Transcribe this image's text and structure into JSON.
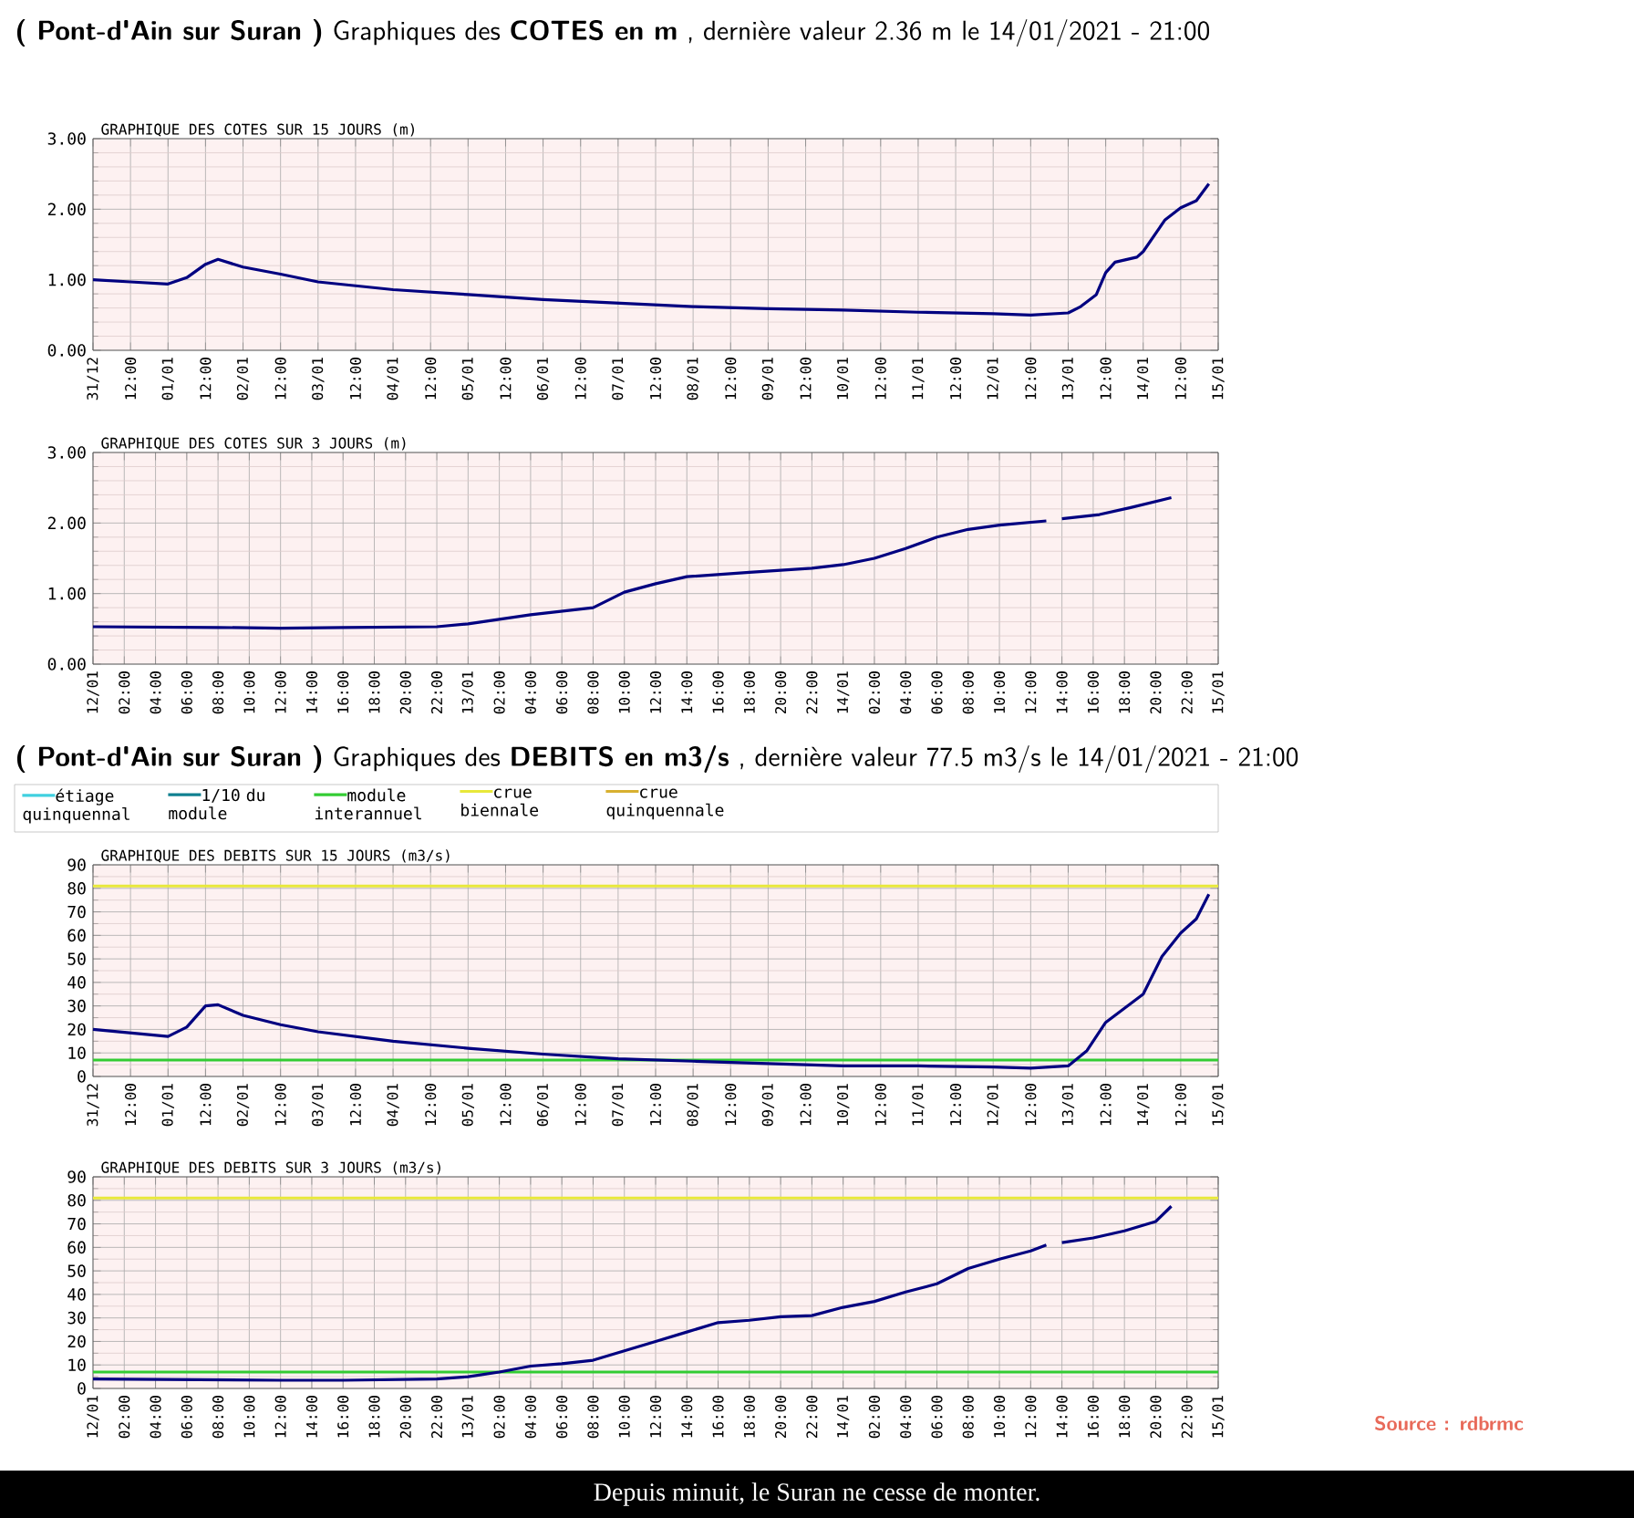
{
  "chart_data": [
    {
      "type": "line",
      "title": "**( Pont-d'Ain sur Suran )** Graphiques des **COTES en m** , dernière valeur 2.36 m le 14/01/2021 - 21:00",
      "subtitle": "GRAPHIQUE DES COTES SUR 15 JOURS (m)",
      "color": "#000080",
      "grid": true,
      "x": [
        "2020-12-31T00:00",
        "2020-12-31T12:00",
        "2021-01-01T00:00",
        "2021-01-01T06:00",
        "2021-01-01T12:00",
        "2021-01-01T16:00",
        "2021-01-02T00:00",
        "2021-01-02T12:00",
        "2021-01-03T00:00",
        "2021-01-04T00:00",
        "2021-01-05T00:00",
        "2021-01-06T00:00",
        "2021-01-07T00:00",
        "2021-01-08T00:00",
        "2021-01-09T00:00",
        "2021-01-10T00:00",
        "2021-01-11T00:00",
        "2021-01-12T00:00",
        "2021-01-12T12:00",
        "2021-01-13T00:00",
        "2021-01-13T04:00",
        "2021-01-13T09:00",
        "2021-01-13T12:00",
        "2021-01-13T15:00",
        "2021-01-13T22:00",
        "2021-01-14T00:00",
        "2021-01-14T07:00",
        "2021-01-14T12:00",
        "2021-01-14T17:00",
        "2021-01-14T21:00"
      ],
      "values": [
        1.0,
        0.97,
        0.94,
        1.03,
        1.22,
        1.29,
        1.18,
        1.08,
        0.97,
        0.86,
        0.79,
        0.72,
        0.67,
        0.62,
        0.59,
        0.57,
        0.54,
        0.52,
        0.5,
        0.53,
        0.62,
        0.79,
        1.1,
        1.25,
        1.32,
        1.4,
        1.85,
        2.02,
        2.12,
        2.36
      ],
      "xlim": [
        "2020-12-31T00:00",
        "2021-01-15T00:00"
      ],
      "ylim": [
        0,
        3
      ],
      "yticks": [
        {
          "value": 0,
          "label": "0.00"
        },
        {
          "value": 1,
          "label": "1.00"
        },
        {
          "value": 2,
          "label": "2.00"
        },
        {
          "value": 3,
          "label": "3.00"
        }
      ],
      "xticks": [
        {
          "value": "2020-12-31T00:00",
          "label": "31/12"
        },
        {
          "value": "2020-12-31T12:00",
          "label": "12:00"
        },
        {
          "value": "2021-01-01T00:00",
          "label": "01/01"
        },
        {
          "value": "2021-01-01T12:00",
          "label": "12:00"
        },
        {
          "value": "2021-01-02T00:00",
          "label": "02/01"
        },
        {
          "value": "2021-01-02T12:00",
          "label": "12:00"
        },
        {
          "value": "2021-01-03T00:00",
          "label": "03/01"
        },
        {
          "value": "2021-01-03T12:00",
          "label": "12:00"
        },
        {
          "value": "2021-01-04T00:00",
          "label": "04/01"
        },
        {
          "value": "2021-01-04T12:00",
          "label": "12:00"
        },
        {
          "value": "2021-01-05T00:00",
          "label": "05/01"
        },
        {
          "value": "2021-01-05T12:00",
          "label": "12:00"
        },
        {
          "value": "2021-01-06T00:00",
          "label": "06/01"
        },
        {
          "value": "2021-01-06T12:00",
          "label": "12:00"
        },
        {
          "value": "2021-01-07T00:00",
          "label": "07/01"
        },
        {
          "value": "2021-01-07T12:00",
          "label": "12:00"
        },
        {
          "value": "2021-01-08T00:00",
          "label": "08/01"
        },
        {
          "value": "2021-01-08T12:00",
          "label": "12:00"
        },
        {
          "value": "2021-01-09T00:00",
          "label": "09/01"
        },
        {
          "value": "2021-01-09T12:00",
          "label": "12:00"
        },
        {
          "value": "2021-01-10T00:00",
          "label": "10/01"
        },
        {
          "value": "2021-01-10T12:00",
          "label": "12:00"
        },
        {
          "value": "2021-01-11T00:00",
          "label": "11/01"
        },
        {
          "value": "2021-01-11T12:00",
          "label": "12:00"
        },
        {
          "value": "2021-01-12T00:00",
          "label": "12/01"
        },
        {
          "value": "2021-01-12T12:00",
          "label": "12:00"
        },
        {
          "value": "2021-01-13T00:00",
          "label": "13/01"
        },
        {
          "value": "2021-01-13T12:00",
          "label": "12:00"
        },
        {
          "value": "2021-01-14T00:00",
          "label": "14/01"
        },
        {
          "value": "2021-01-14T12:00",
          "label": "12:00"
        },
        {
          "value": "2021-01-15T00:00",
          "label": "15/01"
        }
      ]
    },
    {
      "type": "line",
      "title": "GRAPHIQUE DES COTES SUR 3 JOURS (m)",
      "color": "#000080",
      "grid": true,
      "x": [
        "2021-01-12T00:00",
        "2021-01-12T08:00",
        "2021-01-12T12:00",
        "2021-01-12T16:00",
        "2021-01-12T22:00",
        "2021-01-13T00:00",
        "2021-01-13T04:00",
        "2021-01-13T08:00",
        "2021-01-13T10:00",
        "2021-01-13T12:00",
        "2021-01-13T14:00",
        "2021-01-13T18:00",
        "2021-01-13T22:00",
        "2021-01-14T00:00",
        "2021-01-14T02:00",
        "2021-01-14T04:00",
        "2021-01-14T06:00",
        "2021-01-14T08:00",
        "2021-01-14T10:00",
        "2021-01-14T13:00",
        "2021-01-14T13:30",
        "2021-01-14T14:00",
        "2021-01-14T16:24",
        "2021-01-14T18:24",
        "2021-01-14T21:00"
      ],
      "values": [
        0.53,
        0.52,
        0.51,
        0.52,
        0.53,
        0.57,
        0.7,
        0.8,
        1.02,
        1.14,
        1.24,
        1.3,
        1.36,
        1.41,
        1.5,
        1.64,
        1.8,
        1.91,
        1.97,
        2.03,
        null,
        2.06,
        2.12,
        2.22,
        2.36
      ],
      "xlim": [
        "2021-01-12T00:00",
        "2021-01-15T00:00"
      ],
      "ylim": [
        0,
        3
      ],
      "yticks": [
        {
          "value": 0,
          "label": "0.00"
        },
        {
          "value": 1,
          "label": "1.00"
        },
        {
          "value": 2,
          "label": "2.00"
        },
        {
          "value": 3,
          "label": "3.00"
        }
      ],
      "xticks": [
        {
          "value": "2021-01-12T00:00",
          "label": "12/01"
        },
        {
          "value": "2021-01-12T02:00",
          "label": "02:00"
        },
        {
          "value": "2021-01-12T04:00",
          "label": "04:00"
        },
        {
          "value": "2021-01-12T06:00",
          "label": "06:00"
        },
        {
          "value": "2021-01-12T08:00",
          "label": "08:00"
        },
        {
          "value": "2021-01-12T10:00",
          "label": "10:00"
        },
        {
          "value": "2021-01-12T12:00",
          "label": "12:00"
        },
        {
          "value": "2021-01-12T14:00",
          "label": "14:00"
        },
        {
          "value": "2021-01-12T16:00",
          "label": "16:00"
        },
        {
          "value": "2021-01-12T18:00",
          "label": "18:00"
        },
        {
          "value": "2021-01-12T20:00",
          "label": "20:00"
        },
        {
          "value": "2021-01-12T22:00",
          "label": "22:00"
        },
        {
          "value": "2021-01-13T00:00",
          "label": "13/01"
        },
        {
          "value": "2021-01-13T02:00",
          "label": "02:00"
        },
        {
          "value": "2021-01-13T04:00",
          "label": "04:00"
        },
        {
          "value": "2021-01-13T06:00",
          "label": "06:00"
        },
        {
          "value": "2021-01-13T08:00",
          "label": "08:00"
        },
        {
          "value": "2021-01-13T10:00",
          "label": "10:00"
        },
        {
          "value": "2021-01-13T12:00",
          "label": "12:00"
        },
        {
          "value": "2021-01-13T14:00",
          "label": "14:00"
        },
        {
          "value": "2021-01-13T16:00",
          "label": "16:00"
        },
        {
          "value": "2021-01-13T18:00",
          "label": "18:00"
        },
        {
          "value": "2021-01-13T20:00",
          "label": "20:00"
        },
        {
          "value": "2021-01-13T22:00",
          "label": "22:00"
        },
        {
          "value": "2021-01-14T00:00",
          "label": "14/01"
        },
        {
          "value": "2021-01-14T02:00",
          "label": "02:00"
        },
        {
          "value": "2021-01-14T04:00",
          "label": "04:00"
        },
        {
          "value": "2021-01-14T06:00",
          "label": "06:00"
        },
        {
          "value": "2021-01-14T08:00",
          "label": "08:00"
        },
        {
          "value": "2021-01-14T10:00",
          "label": "10:00"
        },
        {
          "value": "2021-01-14T12:00",
          "label": "12:00"
        },
        {
          "value": "2021-01-14T14:00",
          "label": "14:00"
        },
        {
          "value": "2021-01-14T16:00",
          "label": "16:00"
        },
        {
          "value": "2021-01-14T18:00",
          "label": "18:00"
        },
        {
          "value": "2021-01-14T20:00",
          "label": "20:00"
        },
        {
          "value": "2021-01-14T22:00",
          "label": "22:00"
        },
        {
          "value": "2021-01-15T00:00",
          "label": "15/01"
        }
      ]
    },
    {
      "type": "other",
      "title": "**( Pont-d'Ain sur Suran )** Graphiques des **DEBITS en m3/s** , dernière valeur 77.5 m3/s le 14/01/2021 - 21:00",
      "categories": [
        "étiage quinquennal",
        "1/10 du module",
        "module interannuel",
        "crue biennale",
        "crue quinquennale"
      ],
      "colors": [
        "#40d0e0",
        "#108090",
        "#33cc33",
        "#e8e83a",
        "#d8b030"
      ]
    },
    {
      "type": "line",
      "title": "GRAPHIQUE DES DEBITS SUR 15 JOURS (m3/s)",
      "color": "#000080",
      "grid": true,
      "x": [
        "2020-12-31T00:00",
        "2021-01-01T00:00",
        "2021-01-01T06:00",
        "2021-01-01T12:00",
        "2021-01-01T16:00",
        "2021-01-02T00:00",
        "2021-01-02T12:00",
        "2021-01-03T00:00",
        "2021-01-04T00:00",
        "2021-01-05T00:00",
        "2021-01-06T00:00",
        "2021-01-07T00:00",
        "2021-01-08T00:00",
        "2021-01-09T00:00",
        "2021-01-10T00:00",
        "2021-01-11T00:00",
        "2021-01-12T00:00",
        "2021-01-12T12:00",
        "2021-01-13T00:00",
        "2021-01-13T06:00",
        "2021-01-13T12:00",
        "2021-01-13T18:00",
        "2021-01-14T00:00",
        "2021-01-14T06:00",
        "2021-01-14T12:00",
        "2021-01-14T17:00",
        "2021-01-14T21:00"
      ],
      "values": [
        20,
        17,
        21,
        30,
        30.5,
        26,
        22,
        19,
        15,
        12,
        9.5,
        7.5,
        6.5,
        5.5,
        4.5,
        4.5,
        4,
        3.5,
        4.5,
        11,
        23,
        29,
        35,
        51,
        61,
        67,
        77.5
      ],
      "xlim": [
        "2020-12-31T00:00",
        "2021-01-15T00:00"
      ],
      "ylim": [
        0,
        90
      ],
      "yticks": [
        0,
        10,
        20,
        30,
        40,
        50,
        60,
        70,
        80,
        90
      ],
      "ref_lines": [
        {
          "axis": "y",
          "value": 81,
          "color": "#e8e83a"
        },
        {
          "axis": "y",
          "value": 7,
          "color": "#33cc33"
        }
      ],
      "xticks": [
        {
          "value": "2020-12-31T00:00",
          "label": "31/12"
        },
        {
          "value": "2020-12-31T12:00",
          "label": "12:00"
        },
        {
          "value": "2021-01-01T00:00",
          "label": "01/01"
        },
        {
          "value": "2021-01-01T12:00",
          "label": "12:00"
        },
        {
          "value": "2021-01-02T00:00",
          "label": "02/01"
        },
        {
          "value": "2021-01-02T12:00",
          "label": "12:00"
        },
        {
          "value": "2021-01-03T00:00",
          "label": "03/01"
        },
        {
          "value": "2021-01-03T12:00",
          "label": "12:00"
        },
        {
          "value": "2021-01-04T00:00",
          "label": "04/01"
        },
        {
          "value": "2021-01-04T12:00",
          "label": "12:00"
        },
        {
          "value": "2021-01-05T00:00",
          "label": "05/01"
        },
        {
          "value": "2021-01-05T12:00",
          "label": "12:00"
        },
        {
          "value": "2021-01-06T00:00",
          "label": "06/01"
        },
        {
          "value": "2021-01-06T12:00",
          "label": "12:00"
        },
        {
          "value": "2021-01-07T00:00",
          "label": "07/01"
        },
        {
          "value": "2021-01-07T12:00",
          "label": "12:00"
        },
        {
          "value": "2021-01-08T00:00",
          "label": "08/01"
        },
        {
          "value": "2021-01-08T12:00",
          "label": "12:00"
        },
        {
          "value": "2021-01-09T00:00",
          "label": "09/01"
        },
        {
          "value": "2021-01-09T12:00",
          "label": "12:00"
        },
        {
          "value": "2021-01-10T00:00",
          "label": "10/01"
        },
        {
          "value": "2021-01-10T12:00",
          "label": "12:00"
        },
        {
          "value": "2021-01-11T00:00",
          "label": "11/01"
        },
        {
          "value": "2021-01-11T12:00",
          "label": "12:00"
        },
        {
          "value": "2021-01-12T00:00",
          "label": "12/01"
        },
        {
          "value": "2021-01-12T12:00",
          "label": "12:00"
        },
        {
          "value": "2021-01-13T00:00",
          "label": "13/01"
        },
        {
          "value": "2021-01-13T12:00",
          "label": "12:00"
        },
        {
          "value": "2021-01-14T00:00",
          "label": "14/01"
        },
        {
          "value": "2021-01-14T12:00",
          "label": "12:00"
        },
        {
          "value": "2021-01-15T00:00",
          "label": "15/01"
        }
      ]
    },
    {
      "type": "line",
      "title": "GRAPHIQUE DES DEBITS SUR 3 JOURS (m3/s)",
      "color": "#000080",
      "grid": true,
      "x": [
        "2021-01-12T00:00",
        "2021-01-12T12:00",
        "2021-01-12T16:00",
        "2021-01-12T22:00",
        "2021-01-13T00:00",
        "2021-01-13T02:00",
        "2021-01-13T04:00",
        "2021-01-13T06:00",
        "2021-01-13T08:00",
        "2021-01-13T10:00",
        "2021-01-13T12:00",
        "2021-01-13T14:00",
        "2021-01-13T16:00",
        "2021-01-13T18:00",
        "2021-01-13T20:00",
        "2021-01-13T22:00",
        "2021-01-14T00:00",
        "2021-01-14T02:00",
        "2021-01-14T04:00",
        "2021-01-14T06:00",
        "2021-01-14T08:00",
        "2021-01-14T10:00",
        "2021-01-14T12:00",
        "2021-01-14T13:00",
        "2021-01-14T13:30",
        "2021-01-14T14:00",
        "2021-01-14T16:00",
        "2021-01-14T18:00",
        "2021-01-14T20:00",
        "2021-01-14T21:00"
      ],
      "values": [
        4,
        3.5,
        3.5,
        4,
        5,
        7,
        9.5,
        10.5,
        12,
        16,
        20,
        24,
        28,
        29,
        30.5,
        31,
        34.5,
        37,
        41,
        44.5,
        51,
        55,
        58.5,
        61,
        null,
        62,
        64,
        67,
        71,
        77.5
      ],
      "xlim": [
        "2021-01-12T00:00",
        "2021-01-15T00:00"
      ],
      "ylim": [
        0,
        90
      ],
      "yticks": [
        0,
        10,
        20,
        30,
        40,
        50,
        60,
        70,
        80,
        90
      ],
      "ref_lines": [
        {
          "axis": "y",
          "value": 81,
          "color": "#e8e83a"
        },
        {
          "axis": "y",
          "value": 7,
          "color": "#33cc33"
        }
      ],
      "annotations": [
        "Source : rdbrmc",
        "Depuis minuit, le Suran ne cesse de monter."
      ],
      "xticks": [
        {
          "value": "2021-01-12T00:00",
          "label": "12/01"
        },
        {
          "value": "2021-01-12T02:00",
          "label": "02:00"
        },
        {
          "value": "2021-01-12T04:00",
          "label": "04:00"
        },
        {
          "value": "2021-01-12T06:00",
          "label": "06:00"
        },
        {
          "value": "2021-01-12T08:00",
          "label": "08:00"
        },
        {
          "value": "2021-01-12T10:00",
          "label": "10:00"
        },
        {
          "value": "2021-01-12T12:00",
          "label": "12:00"
        },
        {
          "value": "2021-01-12T14:00",
          "label": "14:00"
        },
        {
          "value": "2021-01-12T16:00",
          "label": "16:00"
        },
        {
          "value": "2021-01-12T18:00",
          "label": "18:00"
        },
        {
          "value": "2021-01-12T20:00",
          "label": "20:00"
        },
        {
          "value": "2021-01-12T22:00",
          "label": "22:00"
        },
        {
          "value": "2021-01-13T00:00",
          "label": "13/01"
        },
        {
          "value": "2021-01-13T02:00",
          "label": "02:00"
        },
        {
          "value": "2021-01-13T04:00",
          "label": "04:00"
        },
        {
          "value": "2021-01-13T06:00",
          "label": "06:00"
        },
        {
          "value": "2021-01-13T08:00",
          "label": "08:00"
        },
        {
          "value": "2021-01-13T10:00",
          "label": "10:00"
        },
        {
          "value": "2021-01-13T12:00",
          "label": "12:00"
        },
        {
          "value": "2021-01-13T14:00",
          "label": "14:00"
        },
        {
          "value": "2021-01-13T16:00",
          "label": "16:00"
        },
        {
          "value": "2021-01-13T18:00",
          "label": "18:00"
        },
        {
          "value": "2021-01-13T20:00",
          "label": "20:00"
        },
        {
          "value": "2021-01-13T22:00",
          "label": "22:00"
        },
        {
          "value": "2021-01-14T00:00",
          "label": "14/01"
        },
        {
          "value": "2021-01-14T02:00",
          "label": "02:00"
        },
        {
          "value": "2021-01-14T04:00",
          "label": "04:00"
        },
        {
          "value": "2021-01-14T06:00",
          "label": "06:00"
        },
        {
          "value": "2021-01-14T08:00",
          "label": "08:00"
        },
        {
          "value": "2021-01-14T10:00",
          "label": "10:00"
        },
        {
          "value": "2021-01-14T12:00",
          "label": "12:00"
        },
        {
          "value": "2021-01-14T14:00",
          "label": "14:00"
        },
        {
          "value": "2021-01-14T16:00",
          "label": "16:00"
        },
        {
          "value": "2021-01-14T18:00",
          "label": "18:00"
        },
        {
          "value": "2021-01-14T20:00",
          "label": "20:00"
        },
        {
          "value": "2021-01-14T22:00",
          "label": "22:00"
        },
        {
          "value": "2021-01-15T00:00",
          "label": "15/01"
        }
      ]
    }
  ]
}
